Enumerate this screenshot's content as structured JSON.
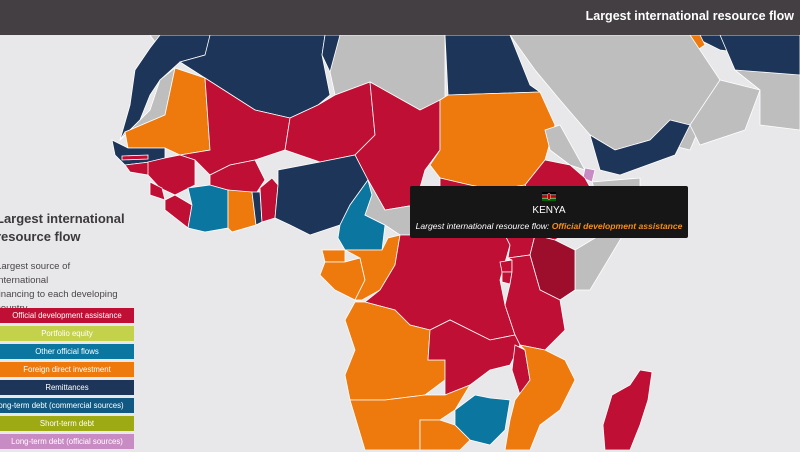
{
  "header": {
    "title": "Largest international resource flow"
  },
  "sidebar": {
    "title_line1": "Largest international",
    "title_line2": "resource flow",
    "desc_line1": "Largest source of international",
    "desc_line2": "financing to each developing",
    "desc_line3": "country."
  },
  "colors": {
    "oda": "#bf0f34",
    "portfolio": "#c4d14a",
    "oof": "#0b76a0",
    "fdi": "#ee7a0e",
    "remit": "#1d3558",
    "ltd_com": "#115982",
    "std": "#9eaa14",
    "ltd_off": "#c98bc4",
    "nodata": "#bfbebf",
    "highlight": "#9c0e2c",
    "water": "#e8e7e9",
    "accent": "#f78d17"
  },
  "legend": [
    {
      "label": "Official development assistance",
      "color": "#bf0f34"
    },
    {
      "label": "Portfolio equity",
      "color": "#c4d14a"
    },
    {
      "label": "Other official flows",
      "color": "#0b76a0"
    },
    {
      "label": "Foreign direct investment",
      "color": "#ee7a0e"
    },
    {
      "label": "Remittances",
      "color": "#1d3558"
    },
    {
      "label": "Long-term debt (commercial sources)",
      "color": "#115982"
    },
    {
      "label": "Short-term debt",
      "color": "#9eaa14"
    },
    {
      "label": "Long-term debt (official sources)",
      "color": "#c98bc4"
    }
  ],
  "tooltip": {
    "country": "KENYA",
    "prefix": "Largest international resource flow:",
    "value": "Official development assistance",
    "flag_icon": "kenya-flag-icon"
  }
}
